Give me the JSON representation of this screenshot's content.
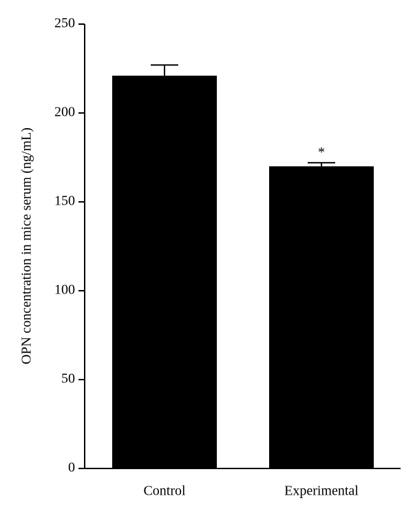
{
  "chart_data": {
    "type": "bar",
    "y_label": "OPN concentration in mice serum (ng/mL)",
    "categories": [
      "Control",
      "Experimental"
    ],
    "values": [
      221,
      170
    ],
    "errors": [
      6,
      2
    ],
    "color": "#000000",
    "annotations": [
      {
        "text": "*",
        "category": "Experimental"
      }
    ],
    "ylim": [
      0,
      250
    ],
    "yticks": [
      0,
      50,
      100,
      150,
      200,
      250
    ],
    "grid": false
  }
}
